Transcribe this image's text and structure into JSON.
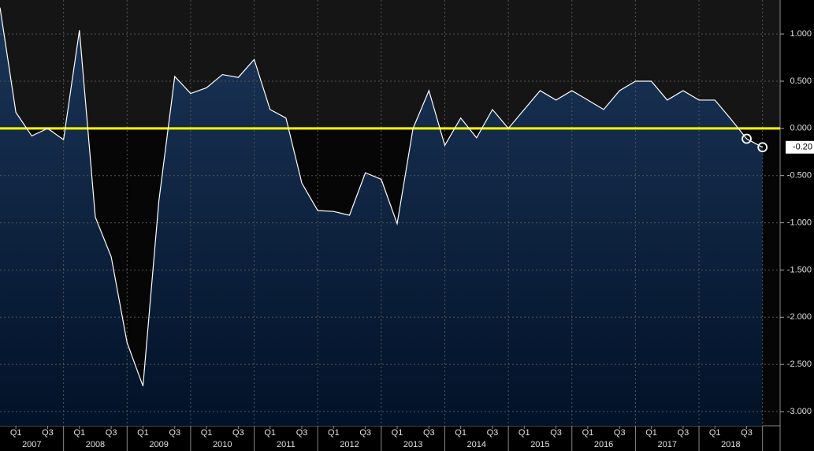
{
  "chart_data": {
    "type": "area",
    "categories": [
      null,
      "Q1",
      null,
      "Q3",
      null,
      "Q1",
      null,
      "Q3",
      null,
      "Q1",
      null,
      "Q3",
      null,
      "Q1",
      null,
      "Q3",
      null,
      "Q1",
      null,
      "Q3",
      null,
      "Q1",
      null,
      "Q3",
      null,
      "Q1",
      null,
      "Q3",
      null,
      "Q1",
      null,
      "Q3",
      null,
      "Q1",
      null,
      "Q3",
      null,
      "Q1",
      null,
      "Q3",
      null,
      "Q1",
      null,
      "Q3",
      null,
      "Q1",
      null,
      "Q3",
      null
    ],
    "years": [
      "2007",
      "2008",
      "2009",
      "2010",
      "2011",
      "2012",
      "2013",
      "2014",
      "2015",
      "2016",
      "2017",
      "2018"
    ],
    "values": [
      1.28,
      0.17,
      -0.08,
      0.0,
      -0.12,
      1.04,
      -0.94,
      -1.36,
      -2.27,
      -2.73,
      -0.77,
      0.55,
      0.37,
      0.43,
      0.57,
      0.54,
      0.73,
      0.2,
      0.11,
      -0.58,
      -0.87,
      -0.88,
      -0.92,
      -0.47,
      -0.54,
      -1.01,
      0.0,
      0.4,
      -0.18,
      0.11,
      -0.1,
      0.2,
      0.0,
      0.2,
      0.4,
      0.3,
      0.4,
      0.3,
      0.2,
      0.4,
      0.5,
      0.5,
      0.3,
      0.4,
      0.3,
      0.3,
      0.1,
      -0.11,
      -0.2
    ],
    "value_labels": [
      null,
      null,
      null,
      null,
      null,
      null,
      null,
      null,
      null,
      null,
      null,
      null,
      null,
      null,
      null,
      null,
      null,
      null,
      null,
      null,
      null,
      null,
      null,
      null,
      null,
      null,
      null,
      null,
      null,
      null,
      null,
      null,
      null,
      null,
      null,
      null,
      null,
      null,
      null,
      null,
      null,
      null,
      null,
      null,
      null,
      null,
      null,
      null,
      "-0.20"
    ],
    "color": "#ffffff",
    "fill_color": "#0d2748",
    "zero_line_color": "#ffff00",
    "ylim": [
      -3.15,
      1.36
    ],
    "yticks": [
      {
        "value": 1,
        "label": "1.000"
      },
      {
        "value": 0.5,
        "label": "0.500"
      },
      {
        "value": 0,
        "label": "0.000"
      },
      {
        "value": -0.5,
        "label": "-0.500"
      },
      {
        "value": -1,
        "label": "-1.000"
      },
      {
        "value": -1.5,
        "label": "-1.500"
      },
      {
        "value": -2,
        "label": "-2.000"
      },
      {
        "value": -2.5,
        "label": "-2.500"
      },
      {
        "value": -3,
        "label": "-3.000"
      }
    ],
    "grid": true
  }
}
